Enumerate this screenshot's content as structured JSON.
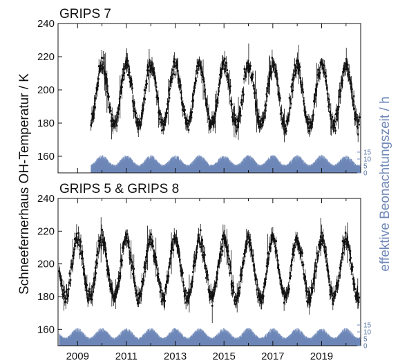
{
  "ylabel_left": "Schneefernerhaus OH-Temperatur / K",
  "ylabel_right": "effektive Beonachtungszeit / h",
  "colors": {
    "data": "#111111",
    "observation_time": "#6f88b8",
    "axis": "#111111"
  },
  "chart_data": [
    {
      "type": "scatter",
      "title": "GRIPS 7",
      "x_range": [
        2008.2,
        2020.6
      ],
      "ylim": [
        150,
        240
      ],
      "y_ticks": [
        160,
        180,
        200,
        220,
        240
      ],
      "x_ticks": [
        2009,
        2011,
        2013,
        2015,
        2017,
        2019
      ],
      "x_tick_labels": [],
      "data_start": 2009.55,
      "data_end": 2020.55,
      "seasonal_mean_K": 197,
      "seasonal_amplitude_K": 18,
      "winter_peak_phase": "January",
      "secondary_axis": {
        "label_ticks": [
          0,
          5,
          10,
          15
        ],
        "max": 15
      }
    },
    {
      "type": "scatter",
      "title": "GRIPS 5 & GRIPS 8",
      "x_range": [
        2008.2,
        2020.6
      ],
      "ylim": [
        150,
        240
      ],
      "y_ticks": [
        160,
        180,
        200,
        220,
        240
      ],
      "x_ticks": [
        2009,
        2011,
        2013,
        2015,
        2017,
        2019
      ],
      "x_tick_labels": [
        "2009",
        "2011",
        "2013",
        "2015",
        "2017",
        "2019"
      ],
      "data_start": 2008.25,
      "data_end": 2020.55,
      "seasonal_mean_K": 197,
      "seasonal_amplitude_K": 18,
      "winter_peak_phase": "January",
      "secondary_axis": {
        "label_ticks": [
          0,
          5,
          10,
          15
        ],
        "max": 15
      }
    }
  ]
}
